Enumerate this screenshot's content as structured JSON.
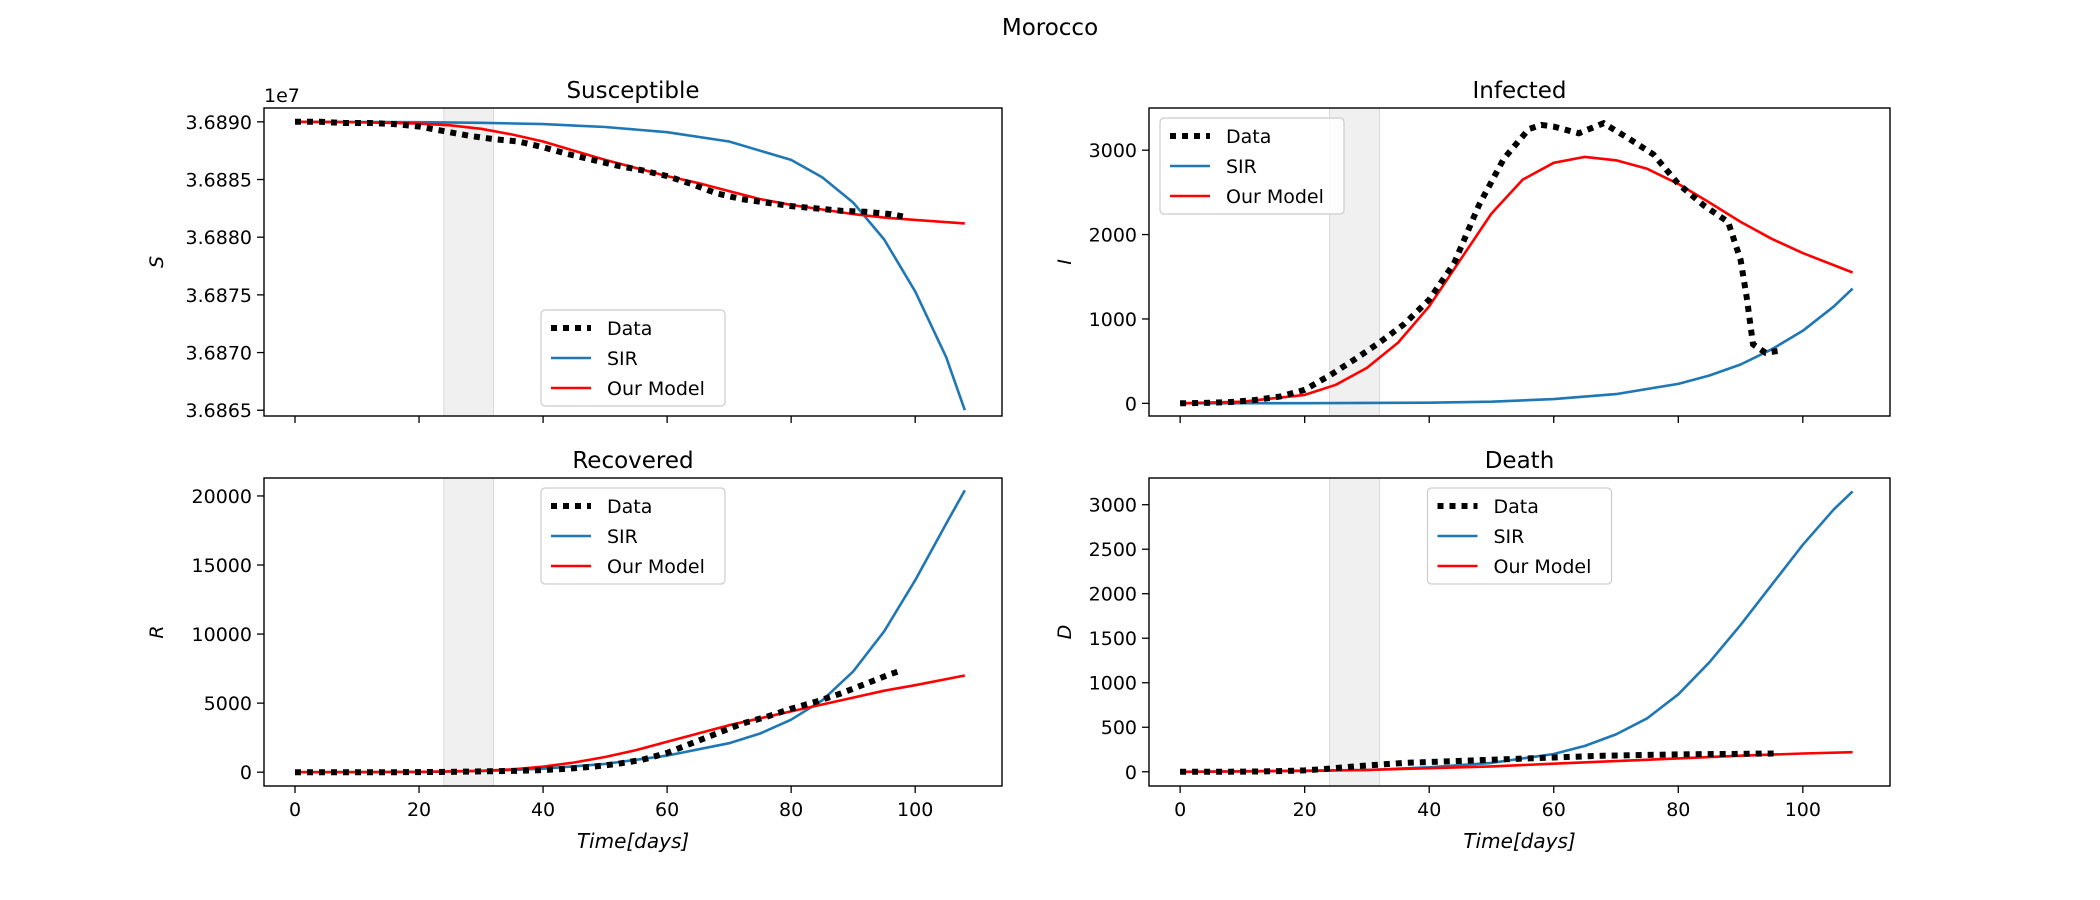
{
  "figure": {
    "title": "Morocco"
  },
  "legend_labels": {
    "data": "Data",
    "sir": "SIR",
    "model": "Our Model"
  },
  "colors": {
    "data": "#000000",
    "sir": "#1f77b4",
    "model": "#ff0000",
    "shade": "#f0f0f0"
  },
  "chart_data": [
    {
      "type": "line",
      "title": "Susceptible",
      "xlabel": "",
      "ylabel": "S",
      "offset_text": "1e7",
      "xlim": [
        -5,
        114
      ],
      "ylim": [
        36864.5,
        36891.2
      ],
      "x_ticks": [
        0,
        20,
        40,
        60,
        80,
        100
      ],
      "show_x_tick_labels": false,
      "y_ticks": [
        36865,
        36870,
        36875,
        36880,
        36885,
        36890
      ],
      "y_tick_labels": [
        "3.6865",
        "3.6870",
        "3.6875",
        "3.6880",
        "3.6885",
        "3.6890"
      ],
      "y_unit": "thousands",
      "shaded_x_range": [
        24,
        32
      ],
      "legend_position": "lower center",
      "series": [
        {
          "name": "Data",
          "style": "dotted",
          "x": [
            0,
            4,
            8,
            12,
            16,
            20,
            24,
            28,
            32,
            36,
            40,
            44,
            48,
            52,
            56,
            60,
            64,
            68,
            72,
            76,
            80,
            84,
            88,
            92,
            96,
            98
          ],
          "y": [
            36890.0,
            36890.0,
            36889.9,
            36889.9,
            36889.8,
            36889.6,
            36889.2,
            36888.8,
            36888.5,
            36888.3,
            36887.8,
            36887.2,
            36886.7,
            36886.2,
            36885.8,
            36885.3,
            36884.6,
            36883.8,
            36883.3,
            36883.0,
            36882.7,
            36882.5,
            36882.3,
            36882.2,
            36882.0,
            36881.8
          ]
        },
        {
          "name": "SIR",
          "style": "solid",
          "x": [
            0,
            10,
            20,
            30,
            40,
            50,
            60,
            70,
            80,
            85,
            90,
            95,
            100,
            105,
            108
          ],
          "y": [
            36890.0,
            36889.99,
            36889.97,
            36889.92,
            36889.8,
            36889.55,
            36889.1,
            36888.3,
            36886.7,
            36885.2,
            36883.0,
            36879.8,
            36875.3,
            36869.6,
            36865.0
          ]
        },
        {
          "name": "Our Model",
          "style": "solid",
          "x": [
            0,
            10,
            20,
            25,
            30,
            35,
            40,
            45,
            50,
            55,
            60,
            65,
            70,
            75,
            80,
            85,
            90,
            95,
            100,
            108
          ],
          "y": [
            36890.0,
            36889.97,
            36889.85,
            36889.7,
            36889.4,
            36888.9,
            36888.3,
            36887.5,
            36886.7,
            36886.0,
            36885.3,
            36884.7,
            36884.0,
            36883.3,
            36882.8,
            36882.4,
            36882.0,
            36881.7,
            36881.5,
            36881.2
          ]
        }
      ]
    },
    {
      "type": "line",
      "title": "Infected",
      "xlabel": "",
      "ylabel": "I",
      "xlim": [
        -5,
        114
      ],
      "ylim": [
        -150,
        3500
      ],
      "x_ticks": [
        0,
        20,
        40,
        60,
        80,
        100
      ],
      "show_x_tick_labels": false,
      "y_ticks": [
        0,
        1000,
        2000,
        3000
      ],
      "y_tick_labels": [
        "0",
        "1000",
        "2000",
        "3000"
      ],
      "shaded_x_range": [
        24,
        32
      ],
      "legend_position": "upper left",
      "series": [
        {
          "name": "Data",
          "style": "dotted",
          "x": [
            0,
            4,
            8,
            12,
            16,
            20,
            24,
            28,
            32,
            36,
            40,
            44,
            48,
            52,
            56,
            58,
            60,
            64,
            68,
            72,
            76,
            80,
            84,
            88,
            90,
            91,
            92,
            94,
            96
          ],
          "y": [
            0,
            5,
            15,
            40,
            80,
            160,
            330,
            520,
            720,
            940,
            1230,
            1660,
            2350,
            2900,
            3250,
            3300,
            3280,
            3200,
            3320,
            3140,
            2950,
            2600,
            2350,
            2150,
            1700,
            1250,
            700,
            600,
            620
          ]
        },
        {
          "name": "SIR",
          "style": "solid",
          "x": [
            0,
            20,
            40,
            50,
            60,
            70,
            80,
            85,
            90,
            95,
            100,
            105,
            108
          ],
          "y": [
            0,
            2,
            8,
            20,
            50,
            110,
            230,
            330,
            460,
            640,
            860,
            1150,
            1360
          ]
        },
        {
          "name": "Our Model",
          "style": "solid",
          "x": [
            0,
            10,
            20,
            25,
            30,
            35,
            40,
            45,
            50,
            55,
            60,
            65,
            70,
            75,
            80,
            85,
            90,
            95,
            100,
            108
          ],
          "y": [
            0,
            20,
            100,
            220,
            420,
            720,
            1150,
            1700,
            2250,
            2650,
            2850,
            2920,
            2880,
            2780,
            2600,
            2380,
            2150,
            1950,
            1780,
            1550
          ]
        }
      ]
    },
    {
      "type": "line",
      "title": "Recovered",
      "xlabel": "Time[days]",
      "ylabel": "R",
      "xlim": [
        -5,
        114
      ],
      "ylim": [
        -1000,
        21300
      ],
      "x_ticks": [
        0,
        20,
        40,
        60,
        80,
        100
      ],
      "x_tick_labels": [
        "0",
        "20",
        "40",
        "60",
        "80",
        "100"
      ],
      "show_x_tick_labels": true,
      "y_ticks": [
        0,
        5000,
        10000,
        15000,
        20000
      ],
      "y_tick_labels": [
        "0",
        "5000",
        "10000",
        "15000",
        "20000"
      ],
      "shaded_x_range": [
        24,
        32
      ],
      "legend_position": "upper center",
      "series": [
        {
          "name": "Data",
          "style": "dotted",
          "x": [
            0,
            4,
            8,
            12,
            16,
            20,
            24,
            28,
            32,
            36,
            40,
            44,
            48,
            52,
            56,
            60,
            64,
            68,
            72,
            76,
            80,
            84,
            88,
            92,
            96,
            98
          ],
          "y": [
            0,
            0,
            0,
            0,
            0,
            10,
            20,
            40,
            70,
            100,
            150,
            250,
            400,
            600,
            900,
            1400,
            2100,
            2800,
            3500,
            4000,
            4600,
            5100,
            5700,
            6400,
            7100,
            7400
          ]
        },
        {
          "name": "SIR",
          "style": "solid",
          "x": [
            0,
            20,
            30,
            40,
            50,
            60,
            70,
            75,
            80,
            85,
            90,
            95,
            100,
            105,
            108
          ],
          "y": [
            0,
            20,
            80,
            250,
            600,
            1200,
            2100,
            2800,
            3800,
            5200,
            7300,
            10200,
            13900,
            18000,
            20400
          ]
        },
        {
          "name": "Our Model",
          "style": "solid",
          "x": [
            0,
            10,
            20,
            30,
            35,
            40,
            45,
            50,
            55,
            60,
            65,
            70,
            75,
            80,
            85,
            90,
            95,
            100,
            108
          ],
          "y": [
            0,
            0,
            20,
            100,
            200,
            400,
            700,
            1100,
            1600,
            2200,
            2800,
            3400,
            3900,
            4400,
            4900,
            5400,
            5900,
            6300,
            7000
          ]
        }
      ]
    },
    {
      "type": "line",
      "title": "Death",
      "xlabel": "Time[days]",
      "ylabel": "D",
      "xlim": [
        -5,
        114
      ],
      "ylim": [
        -160,
        3300
      ],
      "x_ticks": [
        0,
        20,
        40,
        60,
        80,
        100
      ],
      "x_tick_labels": [
        "0",
        "20",
        "40",
        "60",
        "80",
        "100"
      ],
      "show_x_tick_labels": true,
      "y_ticks": [
        0,
        500,
        1000,
        1500,
        2000,
        2500,
        3000
      ],
      "y_tick_labels": [
        "0",
        "500",
        "1000",
        "1500",
        "2000",
        "2500",
        "3000"
      ],
      "shaded_x_range": [
        24,
        32
      ],
      "legend_position": "upper center",
      "series": [
        {
          "name": "Data",
          "style": "dotted",
          "x": [
            0,
            4,
            8,
            12,
            16,
            20,
            24,
            28,
            32,
            36,
            40,
            44,
            48,
            52,
            56,
            60,
            64,
            68,
            72,
            76,
            80,
            84,
            88,
            92,
            96
          ],
          "y": [
            0,
            0,
            1,
            3,
            7,
            15,
            35,
            60,
            80,
            100,
            110,
            120,
            130,
            140,
            150,
            160,
            170,
            180,
            185,
            190,
            195,
            198,
            200,
            203,
            205
          ]
        },
        {
          "name": "SIR",
          "style": "solid",
          "x": [
            0,
            30,
            40,
            50,
            60,
            65,
            70,
            75,
            80,
            85,
            90,
            95,
            100,
            105,
            108
          ],
          "y": [
            0,
            20,
            50,
            100,
            200,
            290,
            420,
            600,
            870,
            1230,
            1650,
            2100,
            2550,
            2950,
            3150
          ]
        },
        {
          "name": "Our Model",
          "style": "solid",
          "x": [
            0,
            10,
            20,
            30,
            40,
            50,
            60,
            70,
            80,
            90,
            100,
            108
          ],
          "y": [
            0,
            3,
            10,
            20,
            40,
            60,
            90,
            120,
            150,
            180,
            205,
            220
          ]
        }
      ]
    }
  ]
}
